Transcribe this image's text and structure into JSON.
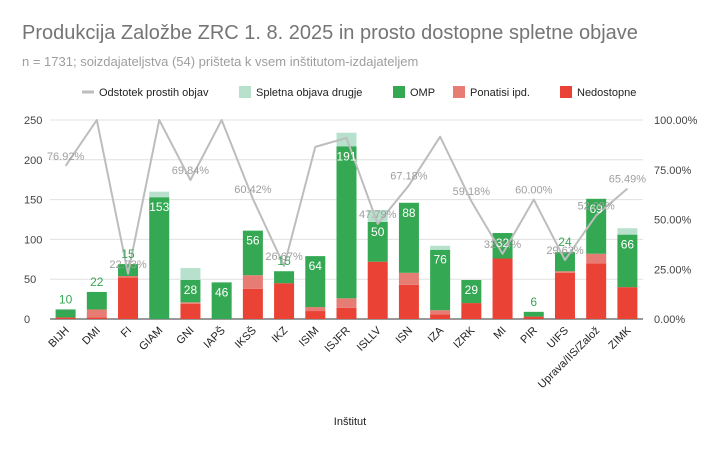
{
  "chart_data": {
    "type": "bar",
    "title": "Produkcija Založbe ZRC 1. 8. 2025 in prosto dostopne spletne objave",
    "subtitle": "n = 1731; soizdajateljstva (54) prišteta k vsem inštitutom-izdajateljem",
    "xlabel": "Inštitut",
    "ylim": [
      0,
      250
    ],
    "y_ticks": [
      "0",
      "50",
      "100",
      "150",
      "200",
      "250"
    ],
    "y2lim": [
      0,
      100
    ],
    "y2_ticks": [
      "0.00%",
      "25.00%",
      "50.00%",
      "75.00%",
      "100.00%"
    ],
    "grid": true,
    "legend_position": "top",
    "categories": [
      "BIJH",
      "DMI",
      "FI",
      "GIAM",
      "GNI",
      "IAPŠ",
      "IKSŠ",
      "IKZ",
      "ISIM",
      "ISJFR",
      "ISLLV",
      "ISN",
      "IZA",
      "IZRK",
      "MI",
      "PIR",
      "UIFS",
      "Uprava/IIS/Založ",
      "ZIMK"
    ],
    "series": [
      {
        "name": "Nedostopne",
        "color": "#ea4335",
        "values": [
          2,
          2,
          52,
          0,
          19,
          0,
          38,
          45,
          10,
          14,
          72,
          43,
          6,
          20,
          76,
          3,
          58,
          70,
          40
        ]
      },
      {
        "name": "Ponatisi ipd.",
        "color": "#e67c73",
        "values": [
          0,
          10,
          2,
          0,
          2,
          0,
          17,
          0,
          5,
          12,
          0,
          15,
          5,
          0,
          0,
          0,
          2,
          12,
          0
        ]
      },
      {
        "name": "OMP",
        "color": "#34a853",
        "values": [
          10,
          22,
          15,
          153,
          28,
          46,
          56,
          15,
          64,
          191,
          50,
          88,
          76,
          29,
          32,
          6,
          24,
          69,
          66
        ]
      },
      {
        "name": "Spletna objava drugje",
        "color": "#b7e1cd",
        "values": [
          0,
          0,
          0,
          7,
          15,
          0,
          0,
          0,
          0,
          17,
          15,
          0,
          5,
          0,
          0,
          0,
          0,
          0,
          8
        ]
      }
    ],
    "line": {
      "name": "Odstotek prostih objav",
      "color": "#bdbdbd",
      "values": [
        76.92,
        100,
        22.73,
        100,
        69.84,
        100,
        60.42,
        26.67,
        86.5,
        91.0,
        47.79,
        67.18,
        91.6,
        59.18,
        32.74,
        60.0,
        29.63,
        52.08,
        65.49
      ],
      "labels": [
        "76.92%",
        "",
        "22.73%",
        "",
        "69.84%",
        "",
        "60.42%",
        "26.67%",
        "",
        "",
        "47.79%",
        "67.18%",
        "",
        "59.18%",
        "32.74%",
        "60.00%",
        "29.63%",
        "52.08%",
        "65.49%"
      ]
    }
  }
}
